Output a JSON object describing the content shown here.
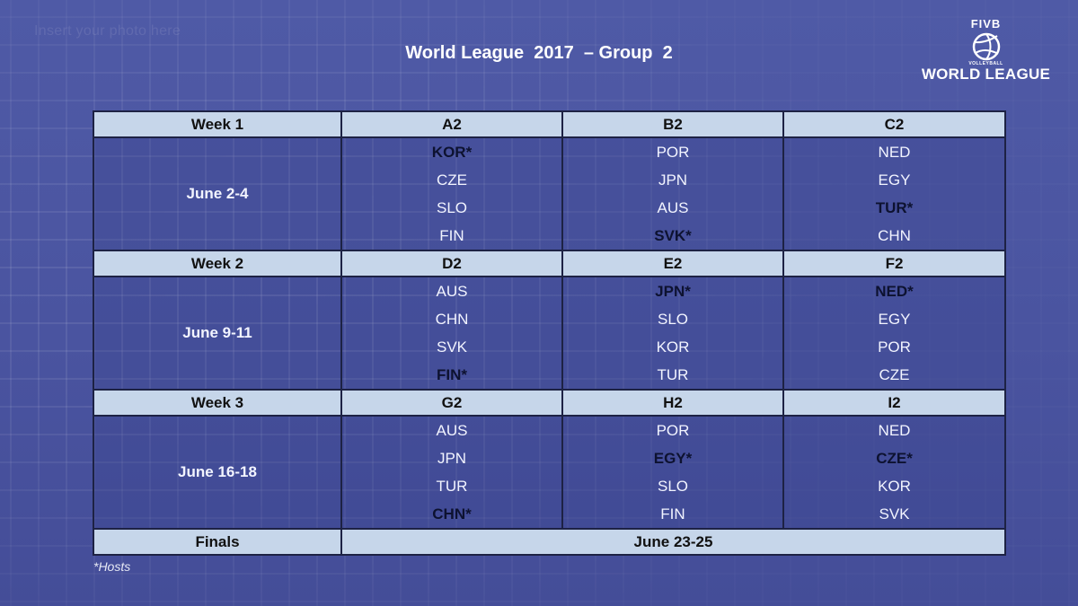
{
  "placeholder": "Insert your photo here",
  "title": "World League  2017  – Group  2",
  "logo": {
    "org": "FIVB",
    "sub": "VOLLEYBALL",
    "name": "WORLD LEAGUE"
  },
  "weeks": [
    {
      "label": "Week 1",
      "dates": "June 2-4",
      "pools": [
        {
          "name": "A2",
          "teams": [
            {
              "code": "KOR*",
              "host": true
            },
            {
              "code": "CZE",
              "host": false
            },
            {
              "code": "SLO",
              "host": false
            },
            {
              "code": "FIN",
              "host": false
            }
          ]
        },
        {
          "name": "B2",
          "teams": [
            {
              "code": "POR",
              "host": false
            },
            {
              "code": "JPN",
              "host": false
            },
            {
              "code": "AUS",
              "host": false
            },
            {
              "code": "SVK*",
              "host": true
            }
          ]
        },
        {
          "name": "C2",
          "teams": [
            {
              "code": "NED",
              "host": false
            },
            {
              "code": "EGY",
              "host": false
            },
            {
              "code": "TUR*",
              "host": true
            },
            {
              "code": "CHN",
              "host": false
            }
          ]
        }
      ]
    },
    {
      "label": "Week 2",
      "dates": "June 9-11",
      "pools": [
        {
          "name": "D2",
          "teams": [
            {
              "code": "AUS",
              "host": false
            },
            {
              "code": "CHN",
              "host": false
            },
            {
              "code": "SVK",
              "host": false
            },
            {
              "code": "FIN*",
              "host": true
            }
          ]
        },
        {
          "name": "E2",
          "teams": [
            {
              "code": "JPN*",
              "host": true
            },
            {
              "code": "SLO",
              "host": false
            },
            {
              "code": "KOR",
              "host": false
            },
            {
              "code": "TUR",
              "host": false
            }
          ]
        },
        {
          "name": "F2",
          "teams": [
            {
              "code": "NED*",
              "host": true
            },
            {
              "code": "EGY",
              "host": false
            },
            {
              "code": "POR",
              "host": false
            },
            {
              "code": "CZE",
              "host": false
            }
          ]
        }
      ]
    },
    {
      "label": "Week 3",
      "dates": "June 16-18",
      "pools": [
        {
          "name": "G2",
          "teams": [
            {
              "code": "AUS",
              "host": false
            },
            {
              "code": "JPN",
              "host": false
            },
            {
              "code": "TUR",
              "host": false
            },
            {
              "code": "CHN*",
              "host": true
            }
          ]
        },
        {
          "name": "H2",
          "teams": [
            {
              "code": "POR",
              "host": false
            },
            {
              "code": "EGY*",
              "host": true
            },
            {
              "code": "SLO",
              "host": false
            },
            {
              "code": "FIN",
              "host": false
            }
          ]
        },
        {
          "name": "I2",
          "teams": [
            {
              "code": "NED",
              "host": false
            },
            {
              "code": "CZE*",
              "host": true
            },
            {
              "code": "KOR",
              "host": false
            },
            {
              "code": "SVK",
              "host": false
            }
          ]
        }
      ]
    }
  ],
  "finals": {
    "label": "Finals",
    "dates": "June 23-25"
  },
  "footnote": "*Hosts"
}
